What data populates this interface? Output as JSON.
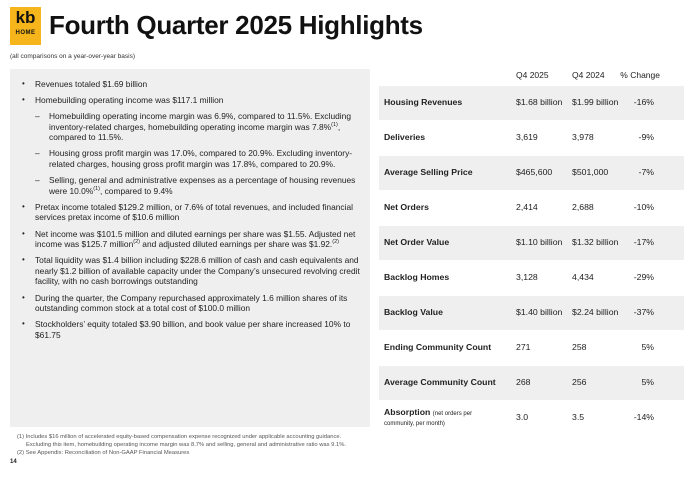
{
  "logo": {
    "top": "kb",
    "bottom": "HOME"
  },
  "title": "Fourth Quarter 2025 Highlights",
  "subtitle": "(all comparisons on a year-over-year basis)",
  "highlights": {
    "b1": "Revenues totaled $1.69 billion",
    "b2": "Homebuilding operating income was $117.1 million",
    "s1a": "Homebuilding operating income margin was 6.9%, compared to 11.5%. Excluding inventory-related charges, homebuilding operating income margin was 7.8%",
    "s1sup": "(1)",
    "s1b": ", compared to 11.5%.",
    "s2": "Housing gross profit margin was 17.0%, compared to 20.9%. Excluding inventory-related charges, housing gross profit margin was 17.8%, compared to 20.9%.",
    "s3a": "Selling, general and administrative expenses as a percentage of housing revenues were 10.0%",
    "s3sup": "(1)",
    "s3b": ", compared to 9.4%",
    "b3": "Pretax income totaled $129.2 million, or 7.6% of total revenues, and included financial services pretax income of $10.6 million",
    "b4a": "Net income was $101.5 million and diluted earnings per share was $1.55. Adjusted net income was $125.7 million",
    "b4sup1": "(2)",
    "b4b": " and adjusted diluted earnings per share was $1.92.",
    "b4sup2": "(2)",
    "b5": "Total liquidity was $1.4 billion including $228.6 million of cash and cash equivalents and nearly $1.2 billion of available capacity under the Company’s unsecured revolving credit facility, with no cash borrowings outstanding",
    "b6": "During the quarter, the Company repurchased approximately 1.6 million shares of its outstanding common stock at a total cost of $100.0 million",
    "b7": "Stockholders’ equity totaled $3.90 billion, and book value per share increased 10% to $61.75"
  },
  "footnotes": {
    "f1": "(1) Includes $16 million of accelerated equity-based compensation expense recognized under applicable accounting guidance.",
    "f1b": "Excluding this item, homebuilding operating income margin was 8.7% and selling, general and administrative ratio was 9.1%.",
    "f2": "(2) See Appendix: Reconciliation of Non-GAAP Financial Measures"
  },
  "page_number": "14",
  "table": {
    "headers": [
      "Q4 2025",
      "Q4 2024",
      "% Change"
    ],
    "rows": [
      {
        "label": "Housing Revenues",
        "q4_2025": "$1.68 billion",
        "q4_2024": "$1.99 billion",
        "change": "-16%"
      },
      {
        "label": "Deliveries",
        "q4_2025": "3,619",
        "q4_2024": "3,978",
        "change": "-9%"
      },
      {
        "label": "Average Selling Price",
        "q4_2025": "$465,600",
        "q4_2024": "$501,000",
        "change": "-7%"
      },
      {
        "label": "Net Orders",
        "q4_2025": "2,414",
        "q4_2024": "2,688",
        "change": "-10%"
      },
      {
        "label": "Net Order Value",
        "q4_2025": "$1.10 billion",
        "q4_2024": "$1.32 billion",
        "change": "-17%"
      },
      {
        "label": "Backlog Homes",
        "q4_2025": "3,128",
        "q4_2024": "4,434",
        "change": "-29%"
      },
      {
        "label": "Backlog Value",
        "q4_2025": "$1.40 billion",
        "q4_2024": "$2.24 billion",
        "change": "-37%"
      },
      {
        "label": "Ending Community Count",
        "q4_2025": "271",
        "q4_2024": "258",
        "change": "5%"
      },
      {
        "label": "Average Community Count",
        "q4_2025": "268",
        "q4_2024": "256",
        "change": "5%"
      },
      {
        "label": "Absorption",
        "note": "(net orders per",
        "note2": "community, per month)",
        "q4_2025": "3.0",
        "q4_2024": "3.5",
        "change": "-14%"
      }
    ]
  }
}
